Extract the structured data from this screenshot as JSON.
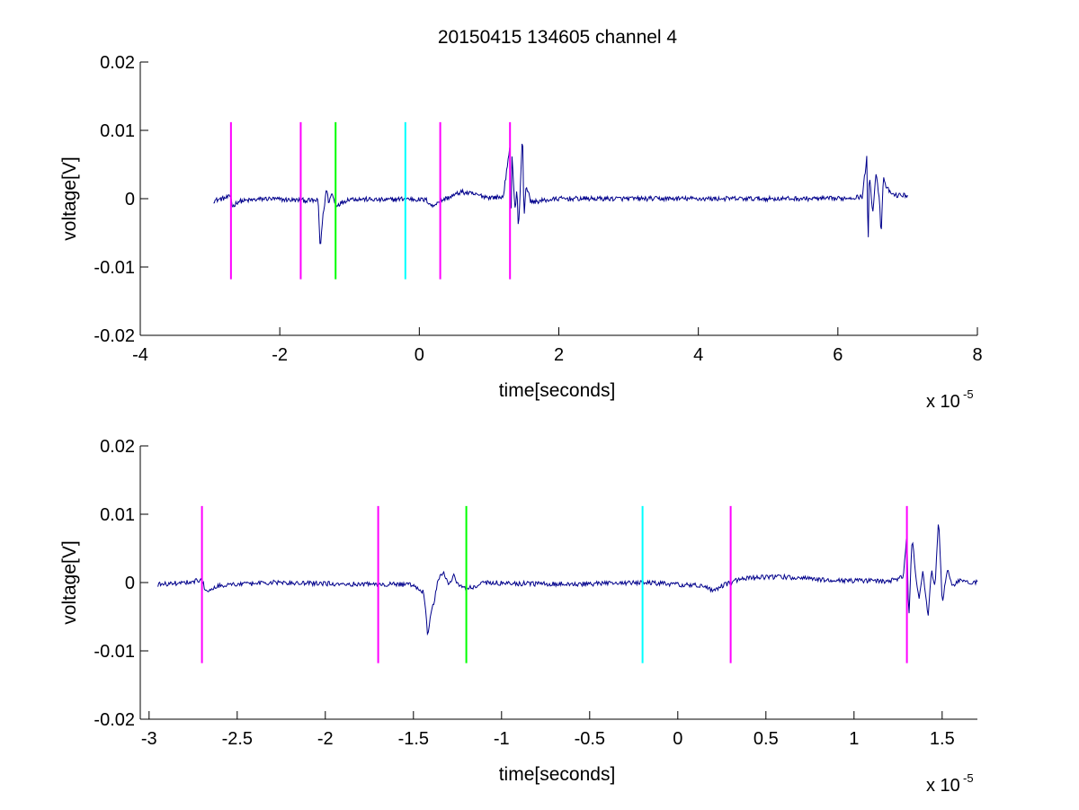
{
  "figure": {
    "title": "20150415 134605 channel 4"
  },
  "chart_data": [
    {
      "type": "line",
      "title": "20150415 134605 channel 4",
      "xlabel": "time[seconds]",
      "ylabel": "voltage[V]",
      "x_multiplier_base": "x 10",
      "x_multiplier_exp": "-5",
      "xlim": [
        -4,
        8
      ],
      "ylim": [
        -0.02,
        0.02
      ],
      "x_ticks": [
        -4,
        -2,
        0,
        2,
        4,
        6,
        8
      ],
      "x_tick_labels": [
        "-4",
        "-2",
        "0",
        "2",
        "4",
        "6",
        "8"
      ],
      "y_ticks": [
        -0.02,
        -0.01,
        0,
        0.01,
        0.02
      ],
      "y_tick_labels": [
        "-0.02",
        "-0.01",
        "0",
        "0.01",
        "0.02"
      ],
      "grid": false,
      "series_color": "#00008b",
      "signal_range": [
        -2.95,
        7.0
      ],
      "signal_keypoints": [
        [
          -2.95,
          -0.0003
        ],
        [
          -2.7,
          0.0003
        ],
        [
          -2.68,
          -0.0012
        ],
        [
          -2.6,
          -0.0004
        ],
        [
          -2.2,
          0.0
        ],
        [
          -1.8,
          -0.0002
        ],
        [
          -1.45,
          -0.0003
        ],
        [
          -1.42,
          -0.0076
        ],
        [
          -1.4,
          -0.0045
        ],
        [
          -1.38,
          -0.0025
        ],
        [
          -1.33,
          0.0015
        ],
        [
          -1.3,
          -0.0005
        ],
        [
          -1.25,
          0.0008
        ],
        [
          -1.2,
          -0.001
        ],
        [
          -1.0,
          0.0
        ],
        [
          -0.5,
          -0.0002
        ],
        [
          -0.2,
          0.0
        ],
        [
          0.1,
          -0.0002
        ],
        [
          0.2,
          -0.0012
        ],
        [
          0.25,
          -0.0005
        ],
        [
          0.5,
          0.0005
        ],
        [
          0.6,
          0.001
        ],
        [
          1.0,
          0.0002
        ],
        [
          1.2,
          0.0002
        ],
        [
          1.3,
          0.0075
        ],
        [
          1.31,
          -0.006
        ],
        [
          1.33,
          0.007
        ],
        [
          1.36,
          0.0
        ],
        [
          1.38,
          -0.0015
        ],
        [
          1.4,
          0.002
        ],
        [
          1.42,
          -0.005
        ],
        [
          1.45,
          0.002
        ],
        [
          1.48,
          0.01
        ],
        [
          1.5,
          -0.003
        ],
        [
          1.53,
          0.002
        ],
        [
          1.6,
          -0.0005
        ],
        [
          2.0,
          0.0
        ],
        [
          4.0,
          0.0
        ],
        [
          6.0,
          0.0
        ],
        [
          6.35,
          0.0003
        ],
        [
          6.42,
          0.0065
        ],
        [
          6.43,
          -0.0102
        ],
        [
          6.45,
          0.004
        ],
        [
          6.5,
          -0.002
        ],
        [
          6.55,
          0.004
        ],
        [
          6.6,
          -0.0006
        ],
        [
          6.62,
          -0.006
        ],
        [
          6.65,
          0.003
        ],
        [
          6.7,
          0.0015
        ],
        [
          6.8,
          0.0005
        ],
        [
          7.0,
          0.0005
        ]
      ],
      "markers": [
        {
          "x": -2.7,
          "color": "#ff00ff"
        },
        {
          "x": -1.7,
          "color": "#ff00ff"
        },
        {
          "x": -1.2,
          "color": "#00ff00"
        },
        {
          "x": -0.2,
          "color": "#00ffff"
        },
        {
          "x": 0.3,
          "color": "#ff00ff"
        },
        {
          "x": 1.3,
          "color": "#ff00ff"
        }
      ],
      "marker_y_range": [
        -0.0118,
        0.0112
      ]
    },
    {
      "type": "line",
      "title": "",
      "xlabel": "time[seconds]",
      "ylabel": "voltage[V]",
      "x_multiplier_base": "x 10",
      "x_multiplier_exp": "-5",
      "xlim": [
        -3.05,
        1.7
      ],
      "ylim": [
        -0.02,
        0.02
      ],
      "x_ticks": [
        -3,
        -2.5,
        -2,
        -1.5,
        -1,
        -0.5,
        0,
        0.5,
        1,
        1.5
      ],
      "x_tick_labels": [
        "-3",
        "-2.5",
        "-2",
        "-1.5",
        "-1",
        "-0.5",
        "0",
        "0.5",
        "1",
        "1.5"
      ],
      "y_ticks": [
        -0.02,
        -0.01,
        0,
        0.01,
        0.02
      ],
      "y_tick_labels": [
        "-0.02",
        "-0.01",
        "0",
        "0.01",
        "0.02"
      ],
      "grid": false,
      "series_color": "#00008b",
      "signal_range": [
        -2.95,
        1.7
      ],
      "signal_keypoints": [
        [
          -2.95,
          -0.0003
        ],
        [
          -2.8,
          0.0
        ],
        [
          -2.7,
          0.0004
        ],
        [
          -2.68,
          -0.0012
        ],
        [
          -2.6,
          -0.0004
        ],
        [
          -2.3,
          0.0
        ],
        [
          -1.9,
          -0.0002
        ],
        [
          -1.5,
          -0.0003
        ],
        [
          -1.44,
          -0.0015
        ],
        [
          -1.42,
          -0.0076
        ],
        [
          -1.4,
          -0.0045
        ],
        [
          -1.38,
          -0.0025
        ],
        [
          -1.36,
          0.0005
        ],
        [
          -1.33,
          0.0015
        ],
        [
          -1.3,
          -0.0005
        ],
        [
          -1.27,
          0.001
        ],
        [
          -1.24,
          -0.0005
        ],
        [
          -1.2,
          -0.001
        ],
        [
          -1.1,
          0.0
        ],
        [
          -0.8,
          -0.0002
        ],
        [
          -0.5,
          -0.0002
        ],
        [
          -0.2,
          0.0
        ],
        [
          0.0,
          -0.0003
        ],
        [
          0.15,
          -0.0005
        ],
        [
          0.2,
          -0.0012
        ],
        [
          0.25,
          -0.0005
        ],
        [
          0.35,
          0.0005
        ],
        [
          0.5,
          0.0008
        ],
        [
          0.6,
          0.0008
        ],
        [
          0.9,
          0.0003
        ],
        [
          1.2,
          0.0002
        ],
        [
          1.28,
          0.0008
        ],
        [
          1.3,
          0.0075
        ],
        [
          1.31,
          -0.006
        ],
        [
          1.33,
          0.007
        ],
        [
          1.35,
          0.001
        ],
        [
          1.37,
          -0.0025
        ],
        [
          1.39,
          0.002
        ],
        [
          1.42,
          -0.005
        ],
        [
          1.44,
          0.002
        ],
        [
          1.46,
          -0.001
        ],
        [
          1.48,
          0.01
        ],
        [
          1.5,
          -0.003
        ],
        [
          1.53,
          0.002
        ],
        [
          1.56,
          -0.0005
        ],
        [
          1.6,
          0.0003
        ],
        [
          1.7,
          0.0
        ]
      ],
      "markers": [
        {
          "x": -2.7,
          "color": "#ff00ff"
        },
        {
          "x": -1.7,
          "color": "#ff00ff"
        },
        {
          "x": -1.2,
          "color": "#00ff00"
        },
        {
          "x": -0.2,
          "color": "#00ffff"
        },
        {
          "x": 0.3,
          "color": "#ff00ff"
        },
        {
          "x": 1.3,
          "color": "#ff00ff"
        }
      ],
      "marker_y_range": [
        -0.0118,
        0.0112
      ]
    }
  ]
}
